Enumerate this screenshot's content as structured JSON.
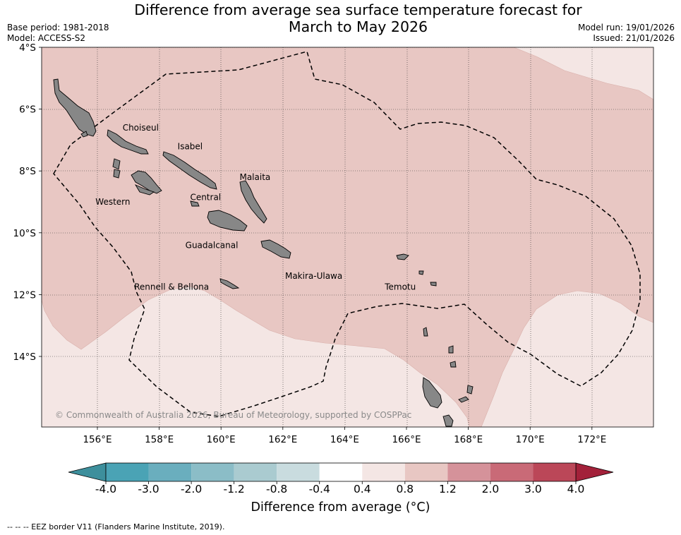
{
  "title": {
    "line1": "Difference from average sea surface temperature forecast for",
    "line2": "March to May 2026"
  },
  "meta": {
    "base_period": "Base period: 1981-2018",
    "model": "Model: ACCESS-S2",
    "model_run": "Model run: 19/01/2026",
    "issued": "Issued: 21/01/2026"
  },
  "map": {
    "lat_ticks": [
      "4°S",
      "6°S",
      "8°S",
      "10°S",
      "12°S",
      "14°S"
    ],
    "lon_ticks": [
      "156°E",
      "158°E",
      "160°E",
      "162°E",
      "164°E",
      "166°E",
      "168°E",
      "170°E",
      "172°E"
    ],
    "copyright": "© Commonwealth of Australia 2026, Bureau of Meteorology, supported by COSPPac",
    "regions": [
      {
        "name": "Choiseul",
        "lon": 157.4,
        "lat": -6.7
      },
      {
        "name": "Isabel",
        "lon": 159.0,
        "lat": -7.3
      },
      {
        "name": "Malaita",
        "lon": 161.1,
        "lat": -8.3
      },
      {
        "name": "Western",
        "lon": 156.5,
        "lat": -9.1
      },
      {
        "name": "Central",
        "lon": 159.5,
        "lat": -8.95
      },
      {
        "name": "Guadalcanal",
        "lon": 159.7,
        "lat": -10.5
      },
      {
        "name": "Makira-Ulawa",
        "lon": 163.0,
        "lat": -11.5
      },
      {
        "name": "Rennell & Bellona",
        "lon": 158.4,
        "lat": -11.85
      },
      {
        "name": "Temotu",
        "lon": 165.8,
        "lat": -11.85
      }
    ]
  },
  "colorbar": {
    "title": "Difference from average (°C)",
    "labels": [
      "-4.0",
      "-3.0",
      "-2.0",
      "-1.2",
      "-0.8",
      "-0.4",
      "0.4",
      "0.8",
      "1.2",
      "2.0",
      "3.0",
      "4.0"
    ],
    "colors": [
      "#4aa3b5",
      "#6aaebe",
      "#8bbdc7",
      "#aacbd0",
      "#c9dcdf",
      "#ffffff",
      "#f4e6e4",
      "#e8c7c3",
      "#d5929a",
      "#c96a77",
      "#bb4758"
    ],
    "under_color": "#3d8f9c",
    "over_color": "#a3213a"
  },
  "footnote": "-- -- -- EEZ border V11 (Flanders Marine Institute, 2019).",
  "colors": {
    "anomaly_0_8_to_1_2": "#e8c7c3",
    "anomaly_0_4_to_0_8": "#f4e6e4",
    "land": "#878787"
  }
}
